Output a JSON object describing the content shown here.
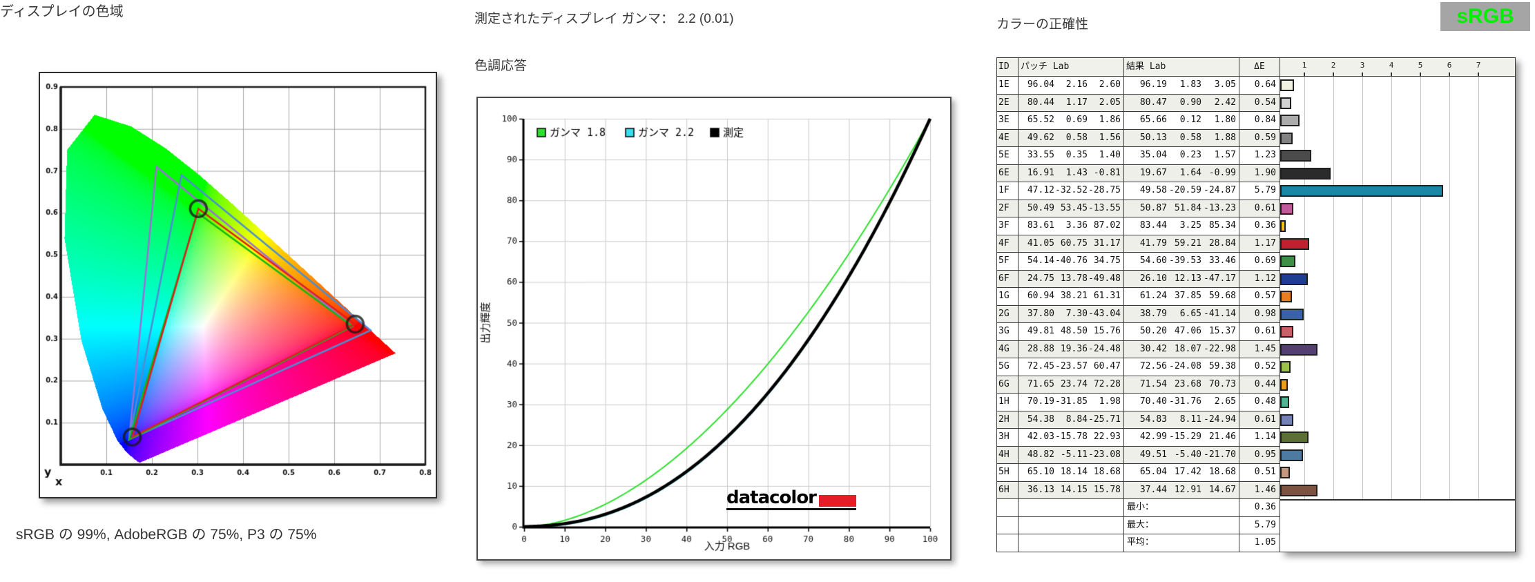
{
  "page": {
    "left": {
      "title": "ディスプレイの色域",
      "caption": "sRGB の 99%, AdobeRGB の 75%, P3 の 75%"
    },
    "middle": {
      "measured_gamma": "測定されたディスプレイ ガンマ： 2.2 (0.01)",
      "section_title": "色調応答",
      "logo_text": "datacolor"
    },
    "right": {
      "title": "カラーの正確性",
      "badge": "sRGB"
    }
  },
  "chart_data": [
    {
      "id": "display-gamut",
      "type": "area",
      "title": "ディスプレイの色域",
      "xlabel": "x",
      "ylabel": "y",
      "xlim": [
        0,
        0.8
      ],
      "ylim": [
        0,
        0.9
      ],
      "xticks": [
        0.1,
        0.2,
        0.3,
        0.4,
        0.5,
        0.6,
        0.7,
        0.8
      ],
      "yticks": [
        0.1,
        0.2,
        0.3,
        0.4,
        0.5,
        0.6,
        0.7,
        0.8,
        0.9
      ],
      "grid": true,
      "series": [
        {
          "name": "AdobeRGB",
          "color": "#9a6fd6",
          "points": [
            [
              0.64,
              0.33
            ],
            [
              0.21,
              0.71
            ],
            [
              0.15,
              0.06
            ]
          ]
        },
        {
          "name": "P3",
          "color": "#4b8ed2",
          "points": [
            [
              0.68,
              0.32
            ],
            [
              0.265,
              0.69
            ],
            [
              0.15,
              0.06
            ]
          ]
        },
        {
          "name": "sRGB",
          "color": "#10b818",
          "points": [
            [
              0.64,
              0.33
            ],
            [
              0.3,
              0.6
            ],
            [
              0.15,
              0.06
            ]
          ]
        },
        {
          "name": "measured-display",
          "color": "#e01f1f",
          "points": [
            [
              0.646,
              0.335
            ],
            [
              0.302,
              0.61
            ],
            [
              0.157,
              0.066
            ]
          ]
        }
      ],
      "markers": {
        "color": "#1a1a1a",
        "points": [
          [
            0.646,
            0.335
          ],
          [
            0.302,
            0.61
          ],
          [
            0.157,
            0.066
          ]
        ]
      },
      "coverage_caption": "sRGB の 99%, AdobeRGB の 75%, P3 の 75%"
    },
    {
      "id": "tone-response",
      "type": "line",
      "title": "色調応答",
      "subtitle": "測定されたディスプレイ ガンマ： 2.2 (0.01)",
      "xlabel": "入力 RGB",
      "ylabel": "出力輝度",
      "xlim": [
        0,
        100
      ],
      "ylim": [
        0,
        100
      ],
      "xticks": [
        0,
        10,
        20,
        30,
        40,
        50,
        60,
        70,
        80,
        90,
        100
      ],
      "yticks": [
        0,
        10,
        20,
        30,
        40,
        50,
        60,
        70,
        80,
        90,
        100
      ],
      "grid": true,
      "legend_position": "top-left",
      "series": [
        {
          "name": "ガンマ 1.8",
          "color": "#2ee02e",
          "gamma": 1.8,
          "width": 2,
          "measured": false
        },
        {
          "name": "ガンマ 2.2",
          "color": "#35dff0",
          "gamma": 2.2,
          "width": 3,
          "measured": false
        },
        {
          "name": "測定",
          "color": "#000000",
          "gamma": 2.2,
          "width": 4.5,
          "measured": true
        }
      ]
    },
    {
      "id": "color-accuracy",
      "type": "bar",
      "title": "カラーの正確性",
      "unit": "ΔE",
      "axis_ticks": [
        1,
        2,
        3,
        4,
        5,
        6,
        7
      ],
      "xlim": [
        0,
        8.1
      ],
      "headers": [
        "ID",
        "パッチ Lab",
        "結果 Lab",
        "ΔE"
      ],
      "rows": [
        {
          "id": "1E",
          "patch": [
            96.04,
            2.16,
            2.6
          ],
          "result": [
            96.19,
            1.83,
            3.05
          ],
          "dE": 0.64,
          "color": "#f2f2e2"
        },
        {
          "id": "2E",
          "patch": [
            80.44,
            1.17,
            2.05
          ],
          "result": [
            80.47,
            0.9,
            2.42
          ],
          "dE": 0.54,
          "color": "#d2d2d2"
        },
        {
          "id": "3E",
          "patch": [
            65.52,
            0.69,
            1.86
          ],
          "result": [
            65.66,
            0.12,
            1.8
          ],
          "dE": 0.84,
          "color": "#ababab"
        },
        {
          "id": "4E",
          "patch": [
            49.62,
            0.58,
            1.56
          ],
          "result": [
            50.13,
            0.58,
            1.88
          ],
          "dE": 0.59,
          "color": "#828282"
        },
        {
          "id": "5E",
          "patch": [
            33.55,
            0.35,
            1.4
          ],
          "result": [
            35.04,
            0.23,
            1.57
          ],
          "dE": 1.23,
          "color": "#4b4b4b"
        },
        {
          "id": "6E",
          "patch": [
            16.91,
            1.43,
            -0.81
          ],
          "result": [
            19.67,
            1.64,
            -0.99
          ],
          "dE": 1.9,
          "color": "#2b2b2b"
        },
        {
          "id": "1F",
          "patch": [
            47.12,
            -32.52,
            -28.75
          ],
          "result": [
            49.58,
            -20.59,
            -24.87
          ],
          "dE": 5.79,
          "color": "#1b86a5"
        },
        {
          "id": "2F",
          "patch": [
            50.49,
            53.45,
            -13.55
          ],
          "result": [
            50.87,
            51.84,
            -13.23
          ],
          "dE": 0.61,
          "color": "#c05a9b"
        },
        {
          "id": "3F",
          "patch": [
            83.61,
            3.36,
            87.02
          ],
          "result": [
            83.44,
            3.25,
            85.34
          ],
          "dE": 0.36,
          "color": "#f2c316"
        },
        {
          "id": "4F",
          "patch": [
            41.05,
            60.75,
            31.17
          ],
          "result": [
            41.79,
            59.21,
            28.84
          ],
          "dE": 1.17,
          "color": "#c02030"
        },
        {
          "id": "5F",
          "patch": [
            54.14,
            -40.76,
            34.75
          ],
          "result": [
            54.6,
            -39.53,
            33.46
          ],
          "dE": 0.69,
          "color": "#3e8e46"
        },
        {
          "id": "6F",
          "patch": [
            24.75,
            13.78,
            -49.48
          ],
          "result": [
            26.1,
            12.13,
            -47.17
          ],
          "dE": 1.12,
          "color": "#1e3e93"
        },
        {
          "id": "1G",
          "patch": [
            60.94,
            38.21,
            61.31
          ],
          "result": [
            61.24,
            37.85,
            59.68
          ],
          "dE": 0.57,
          "color": "#e87d22"
        },
        {
          "id": "2G",
          "patch": [
            37.8,
            7.3,
            -43.04
          ],
          "result": [
            38.79,
            6.65,
            -41.14
          ],
          "dE": 0.98,
          "color": "#3a62aa"
        },
        {
          "id": "3G",
          "patch": [
            49.81,
            48.5,
            15.76
          ],
          "result": [
            50.2,
            47.06,
            15.37
          ],
          "dE": 0.61,
          "color": "#cb5f67"
        },
        {
          "id": "4G",
          "patch": [
            28.88,
            19.36,
            -24.48
          ],
          "result": [
            30.42,
            18.07,
            -22.98
          ],
          "dE": 1.45,
          "color": "#544070"
        },
        {
          "id": "5G",
          "patch": [
            72.45,
            -23.57,
            60.47
          ],
          "result": [
            72.56,
            -24.08,
            59.38
          ],
          "dE": 0.52,
          "color": "#9cc04c"
        },
        {
          "id": "6G",
          "patch": [
            71.65,
            23.74,
            72.28
          ],
          "result": [
            71.54,
            23.68,
            70.73
          ],
          "dE": 0.44,
          "color": "#f09c1c"
        },
        {
          "id": "1H",
          "patch": [
            70.19,
            -31.85,
            1.98
          ],
          "result": [
            70.4,
            -31.76,
            2.65
          ],
          "dE": 0.48,
          "color": "#52b496"
        },
        {
          "id": "2H",
          "patch": [
            54.38,
            8.84,
            -25.71
          ],
          "result": [
            54.83,
            8.11,
            -24.94
          ],
          "dE": 0.61,
          "color": "#7480b7"
        },
        {
          "id": "3H",
          "patch": [
            42.03,
            -15.78,
            22.93
          ],
          "result": [
            42.99,
            -15.29,
            21.46
          ],
          "dE": 1.14,
          "color": "#5c7036"
        },
        {
          "id": "4H",
          "patch": [
            48.82,
            -5.11,
            -23.08
          ],
          "result": [
            49.51,
            -5.4,
            -21.7
          ],
          "dE": 0.95,
          "color": "#4e7aa2"
        },
        {
          "id": "5H",
          "patch": [
            65.1,
            18.14,
            18.68
          ],
          "result": [
            65.04,
            17.42,
            18.68
          ],
          "dE": 0.51,
          "color": "#c69780"
        },
        {
          "id": "6H",
          "patch": [
            36.13,
            14.15,
            15.78
          ],
          "result": [
            37.44,
            12.91,
            14.67
          ],
          "dE": 1.46,
          "color": "#7b5340"
        }
      ],
      "summary": [
        {
          "label": "最小：",
          "value": 0.36
        },
        {
          "label": "最大：",
          "value": 5.79
        },
        {
          "label": "平均：",
          "value": 1.05
        }
      ]
    }
  ]
}
